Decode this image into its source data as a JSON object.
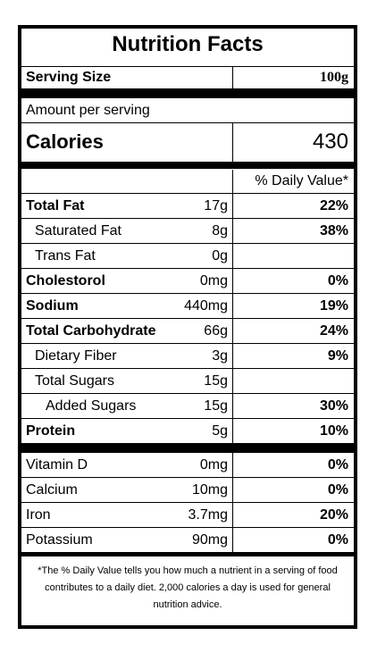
{
  "title": "Nutrition Facts",
  "serving": {
    "label": "Serving Size",
    "value": "100g"
  },
  "amount_per_serving": "Amount per serving",
  "calories": {
    "label": "Calories",
    "value": "430"
  },
  "daily_value_header": "% Daily Value*",
  "nutrients": [
    {
      "name": "Total Fat",
      "amount": "17g",
      "dv": "22%",
      "bold": true,
      "indent": 0
    },
    {
      "name": "Saturated Fat",
      "amount": "8g",
      "dv": "38%",
      "bold": false,
      "indent": 1
    },
    {
      "name": "Trans Fat",
      "amount": "0g",
      "dv": "",
      "bold": false,
      "indent": 1
    },
    {
      "name": "Cholestorol",
      "amount": "0mg",
      "dv": "0%",
      "bold": true,
      "indent": 0
    },
    {
      "name": "Sodium",
      "amount": "440mg",
      "dv": "19%",
      "bold": true,
      "indent": 0
    },
    {
      "name": "Total Carbohydrate",
      "amount": "66g",
      "dv": "24%",
      "bold": true,
      "indent": 0
    },
    {
      "name": "Dietary Fiber",
      "amount": "3g",
      "dv": "9%",
      "bold": false,
      "indent": 1
    },
    {
      "name": "Total Sugars",
      "amount": "15g",
      "dv": "",
      "bold": false,
      "indent": 1
    },
    {
      "name": "Added Sugars",
      "amount": "15g",
      "dv": "30%",
      "bold": false,
      "indent": 2
    },
    {
      "name": "Protein",
      "amount": "5g",
      "dv": "10%",
      "bold": true,
      "indent": 0
    }
  ],
  "vitamins": [
    {
      "name": "Vitamin D",
      "amount": "0mg",
      "dv": "0%"
    },
    {
      "name": "Calcium",
      "amount": "10mg",
      "dv": "0%"
    },
    {
      "name": "Iron",
      "amount": "3.7mg",
      "dv": "20%"
    },
    {
      "name": "Potassium",
      "amount": "90mg",
      "dv": "0%"
    }
  ],
  "footnote": "*The % Daily Value tells you how much a nutrient in a serving of food contributes to a daily diet. 2,000 calories a day is used for general nutrition advice."
}
